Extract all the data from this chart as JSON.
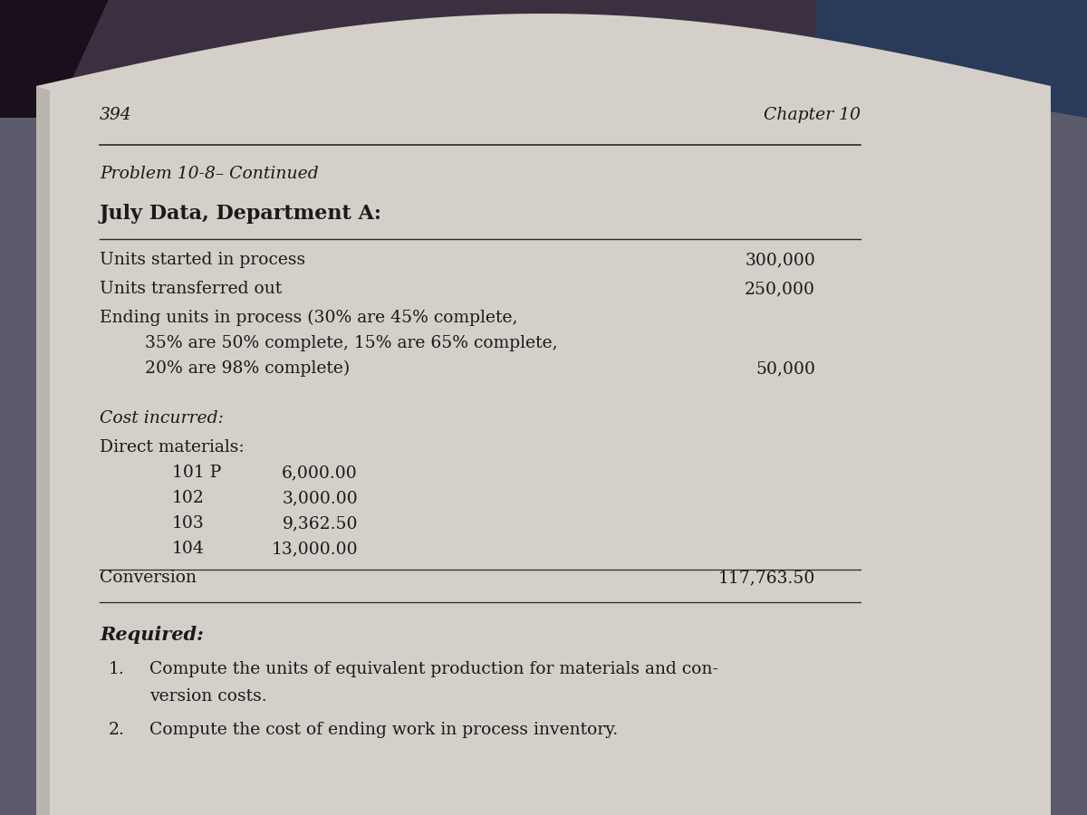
{
  "page_number": "394",
  "chapter": "Chapter 10",
  "problem_header": "Problem 10-8– Continued",
  "section_title": "July Data, Department A:",
  "outer_bg": "#5a5a6a",
  "page_bg": "#d4cfc8",
  "top_bg_left": "#2a1a2a",
  "top_bg_right": "#3a4a6a",
  "font_color": "#1a1a1a",
  "line_color": "#2a2a2a",
  "page_number_text": "394",
  "chapter_text": "Chapter 10",
  "units_started": "300,000",
  "units_transferred": "250,000",
  "ending_units": "50,000",
  "dm_labels": [
    "101 P",
    "102",
    "103",
    "104"
  ],
  "dm_values": [
    "6,000.00",
    "3,000.00",
    "9,362.50",
    "13,000.00"
  ],
  "conversion_value": "117,763.50",
  "req1_line1": "Compute the units of equivalent production for materials and con-",
  "req1_line2": "version costs.",
  "req2": "Compute the cost of ending work in process inventory."
}
